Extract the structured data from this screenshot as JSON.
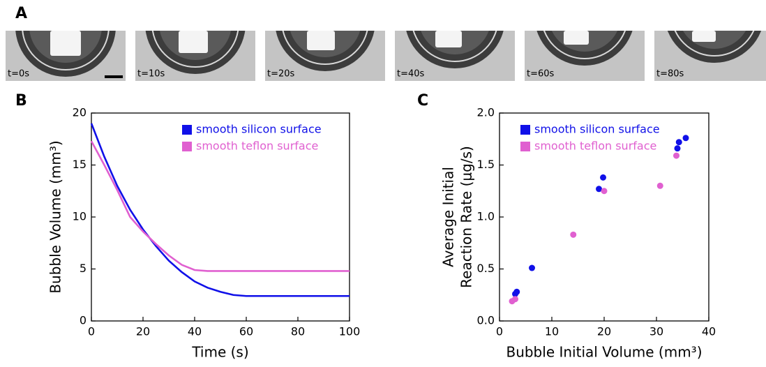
{
  "panels": {
    "labels": [
      "A",
      "B",
      "C"
    ],
    "images": [
      "t=0s",
      "t=10s",
      "t=20s",
      "t=40s",
      "t=60s",
      "t=80s"
    ]
  },
  "chart_data": [
    {
      "type": "line",
      "xlabel": "Time (s)",
      "ylabel": "Bubble Volume (mm³)",
      "x": [
        0,
        5,
        10,
        15,
        20,
        25,
        30,
        35,
        40,
        45,
        50,
        55,
        60,
        65,
        70,
        75,
        80,
        85,
        90,
        95,
        100
      ],
      "series": [
        {
          "name": "smooth silicon surface",
          "color": "#1010e8",
          "values": [
            19,
            15.8,
            13.0,
            10.7,
            8.8,
            7.2,
            5.8,
            4.7,
            3.8,
            3.2,
            2.8,
            2.5,
            2.4,
            2.4,
            2.4,
            2.4,
            2.4,
            2.4,
            2.4,
            2.4,
            2.4
          ]
        },
        {
          "name": "smooth teflon surface",
          "color": "#e060d0",
          "values": [
            17.3,
            15.0,
            12.6,
            10.0,
            8.6,
            7.4,
            6.3,
            5.4,
            4.9,
            4.8,
            4.8,
            4.8,
            4.8,
            4.8,
            4.8,
            4.8,
            4.8,
            4.8,
            4.8,
            4.8,
            4.8
          ]
        }
      ],
      "xlim": [
        0,
        100
      ],
      "xticks": [
        0,
        20,
        40,
        60,
        80,
        100
      ],
      "ylim": [
        0,
        20
      ],
      "yticks": [
        0,
        5,
        10,
        15,
        20
      ],
      "legend": "upper right"
    },
    {
      "type": "scatter",
      "xlabel": "Bubble Initial Volume (mm³)",
      "ylabel": [
        "Average Initial",
        "Reaction Rate (μg/s)"
      ],
      "series": [
        {
          "name": "smooth silicon surface",
          "color": "#1010e8",
          "x": [
            3.0,
            3.3,
            6.2,
            19.0,
            19.8,
            34.0,
            34.3,
            35.6
          ],
          "values": [
            0.26,
            0.28,
            0.51,
            1.27,
            1.38,
            1.66,
            1.72,
            1.76
          ]
        },
        {
          "name": "smooth teflon surface",
          "color": "#e060d0",
          "x": [
            2.4,
            3.0,
            14.1,
            20.0,
            30.7,
            33.8
          ],
          "values": [
            0.19,
            0.21,
            0.83,
            1.25,
            1.3,
            1.59
          ]
        }
      ],
      "xlim": [
        0,
        40
      ],
      "xticks": [
        0,
        10,
        20,
        30,
        40
      ],
      "ylim": [
        0,
        2.0
      ],
      "yticks": [
        {
          "value": 0,
          "label": "0.0"
        },
        {
          "value": 0.5,
          "label": "0.5"
        },
        {
          "value": 1.0,
          "label": "1.0"
        },
        {
          "value": 1.5,
          "label": "1.5"
        },
        {
          "value": 2.0,
          "label": "2.0"
        }
      ],
      "legend": "upper left"
    }
  ]
}
